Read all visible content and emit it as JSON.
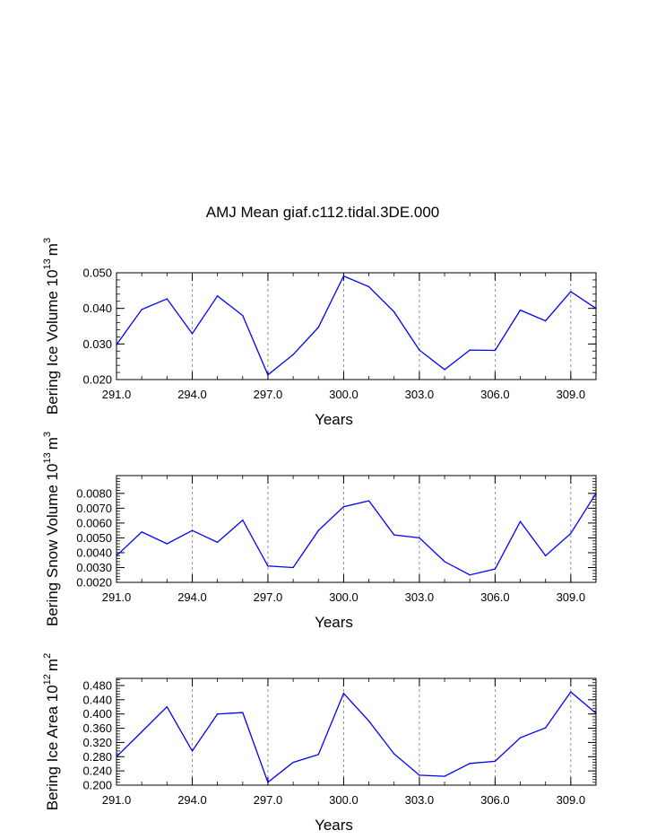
{
  "title": "AMJ Mean giaf.c112.tidal.3DE.000",
  "colors": {
    "series": "#0000ff",
    "axes": "#000000",
    "gridline": "#7a7a7a"
  },
  "chart_data": [
    {
      "type": "line",
      "ylabel": {
        "text": "Bering Ice Volume 10",
        "exp": "13",
        "unit": "m",
        "unit_exp": "3"
      },
      "xlabel": "Years",
      "xlim": [
        291,
        310
      ],
      "ylim": [
        0.02,
        0.05
      ],
      "x_ticks": [
        "291.0",
        "294.0",
        "297.0",
        "300.0",
        "303.0",
        "306.0",
        "309.0"
      ],
      "y_ticks": [
        "0.020",
        "0.030",
        "0.040",
        "0.050"
      ],
      "x": [
        291,
        292,
        293,
        294,
        295,
        296,
        297,
        298,
        299,
        300,
        301,
        302,
        303,
        304,
        305,
        306,
        307,
        308,
        309,
        310
      ],
      "series": [
        {
          "values": [
            0.0298,
            0.0397,
            0.0427,
            0.0329,
            0.0435,
            0.038,
            0.0213,
            0.027,
            0.0347,
            0.0491,
            0.0461,
            0.039,
            0.0283,
            0.0228,
            0.0283,
            0.0282,
            0.0395,
            0.0365,
            0.0447,
            0.04
          ]
        }
      ],
      "grid": "vertical dashed at major x ticks"
    },
    {
      "type": "line",
      "ylabel": {
        "text": "Bering Snow Volume 10",
        "exp": "13",
        "unit": "m",
        "unit_exp": "3"
      },
      "xlabel": "Years",
      "xlim": [
        291,
        310
      ],
      "ylim": [
        0.002,
        0.0092
      ],
      "x_ticks": [
        "291.0",
        "294.0",
        "297.0",
        "300.0",
        "303.0",
        "306.0",
        "309.0"
      ],
      "y_ticks": [
        "0.0020",
        "0.0030",
        "0.0040",
        "0.0050",
        "0.0060",
        "0.0070",
        "0.0080"
      ],
      "x": [
        291,
        292,
        293,
        294,
        295,
        296,
        297,
        298,
        299,
        300,
        301,
        302,
        303,
        304,
        305,
        306,
        307,
        308,
        309,
        310
      ],
      "series": [
        {
          "values": [
            0.0038,
            0.0054,
            0.0046,
            0.0055,
            0.0047,
            0.0062,
            0.0031,
            0.003,
            0.0055,
            0.0071,
            0.0075,
            0.0052,
            0.005,
            0.0034,
            0.0025,
            0.0029,
            0.0061,
            0.0038,
            0.0053,
            0.008
          ]
        }
      ],
      "grid": "vertical dashed at major x ticks"
    },
    {
      "type": "line",
      "ylabel": {
        "text": "Bering Ice Area 10",
        "exp": "12",
        "unit": "m",
        "unit_exp": "2"
      },
      "xlabel": "Years",
      "xlim": [
        291,
        310
      ],
      "ylim": [
        0.2,
        0.5
      ],
      "x_ticks": [
        "291.0",
        "294.0",
        "297.0",
        "300.0",
        "303.0",
        "306.0",
        "309.0"
      ],
      "y_ticks": [
        "0.200",
        "0.240",
        "0.280",
        "0.320",
        "0.360",
        "0.400",
        "0.440",
        "0.480"
      ],
      "x": [
        291,
        292,
        293,
        294,
        295,
        296,
        297,
        298,
        299,
        300,
        301,
        302,
        303,
        304,
        305,
        306,
        307,
        308,
        309,
        310
      ],
      "series": [
        {
          "values": [
            0.28,
            0.35,
            0.42,
            0.296,
            0.4,
            0.404,
            0.208,
            0.264,
            0.286,
            0.458,
            0.38,
            0.288,
            0.228,
            0.225,
            0.261,
            0.267,
            0.333,
            0.361,
            0.462,
            0.402
          ]
        }
      ],
      "grid": "vertical dashed at major x ticks"
    }
  ]
}
